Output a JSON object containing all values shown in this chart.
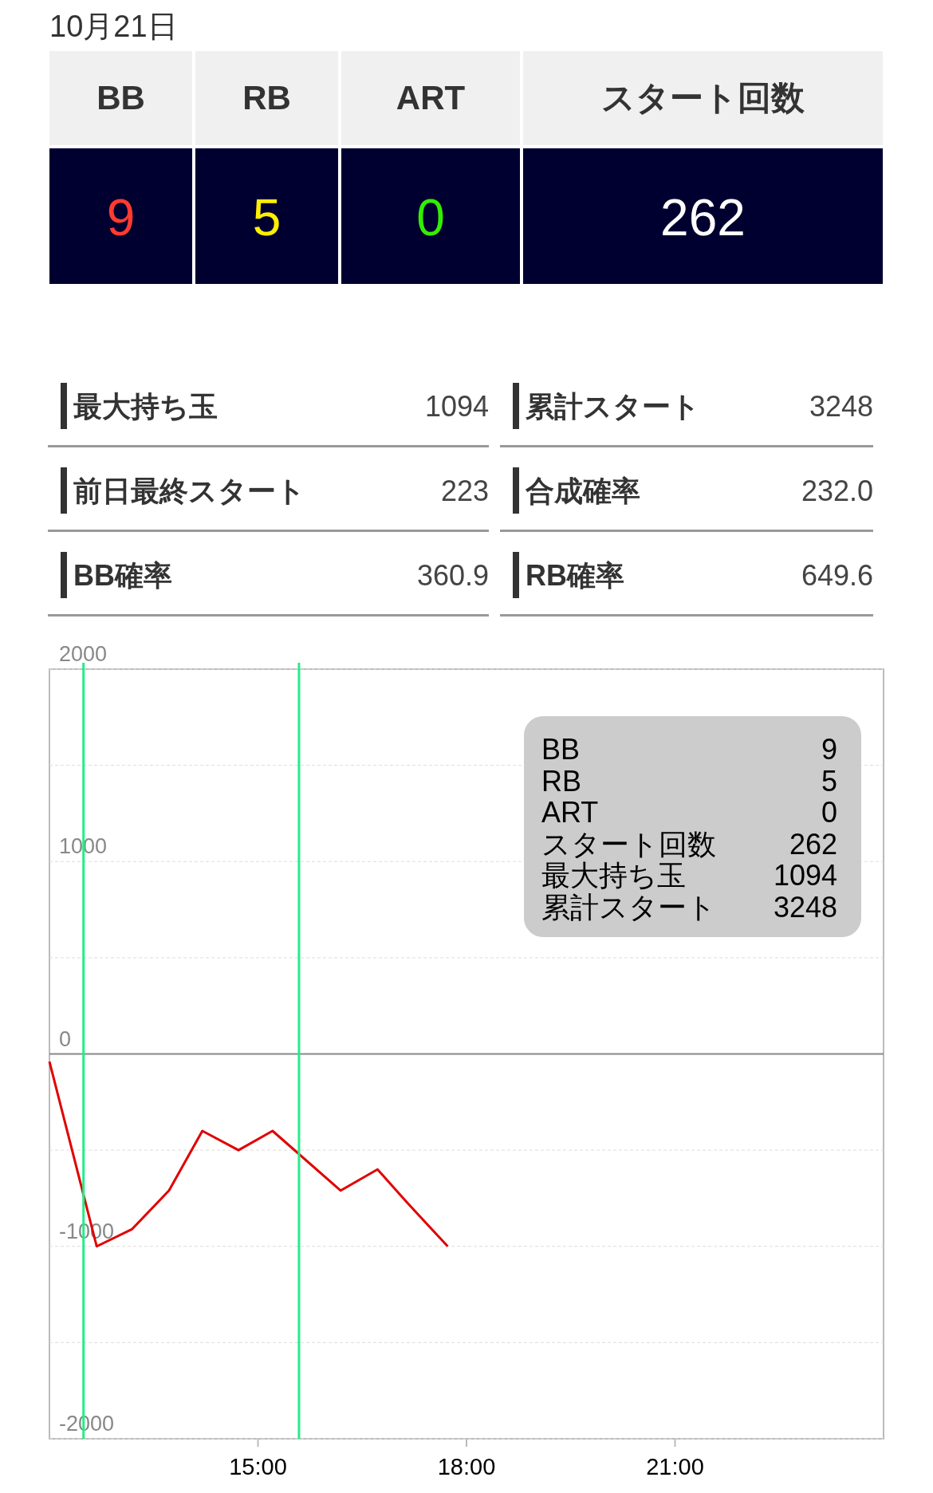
{
  "chart_data": [
    {
      "type": "other",
      "title": "10月21日",
      "annotations": [
        "BB",
        "RB",
        "ART",
        "スタート回数",
        "9",
        "5",
        "0",
        "262",
        "最大持ち玉",
        "1094",
        "累計スタート",
        "3248",
        "前日最終スタート",
        "223",
        "合成確率",
        "232.0",
        "BB確率",
        "360.9",
        "RB確率",
        "649.6"
      ],
      "colors": [
        "#ff3b30",
        "#ffee00",
        "#33ee00",
        "#ffffff"
      ]
    },
    {
      "type": "line",
      "x": [
        12.0,
        12.68,
        13.19,
        13.72,
        14.2,
        14.72,
        15.21,
        16.19,
        16.72,
        17.19,
        17.73
      ],
      "series": [
        {
          "color": "#e00000",
          "values": [
            -40,
            -1000,
            -910,
            -710,
            -400,
            -500,
            -400,
            -710,
            -600,
            -790,
            -1000
          ]
        }
      ],
      "xlim": [
        12,
        24
      ],
      "xticks": [
        {
          "value": 15,
          "label": "15:00"
        },
        {
          "value": 18,
          "label": "18:00"
        },
        {
          "value": 21,
          "label": "21:00"
        }
      ],
      "ylim": [
        -2000,
        2000
      ],
      "yticks": [
        -2000,
        {
          "value": -1500,
          "label": null
        },
        -1000,
        {
          "value": -500,
          "label": null
        },
        0,
        {
          "value": 500,
          "label": null
        },
        1000,
        {
          "value": 1500,
          "label": null
        },
        2000
      ],
      "grid": "y",
      "ref_lines": [
        {
          "axis": "y",
          "value": 0,
          "color": "#888888"
        },
        {
          "axis": "x",
          "value": 12.49,
          "color": "#22ee88"
        },
        {
          "axis": "x",
          "value": 15.59,
          "color": "#22ee88"
        }
      ],
      "annotations": [
        "BB",
        "9",
        "RB",
        "5",
        "ART",
        "0",
        "スタート回数",
        "262",
        "最大持ち玉",
        "1094",
        "累計スタート",
        "3248"
      ]
    }
  ]
}
